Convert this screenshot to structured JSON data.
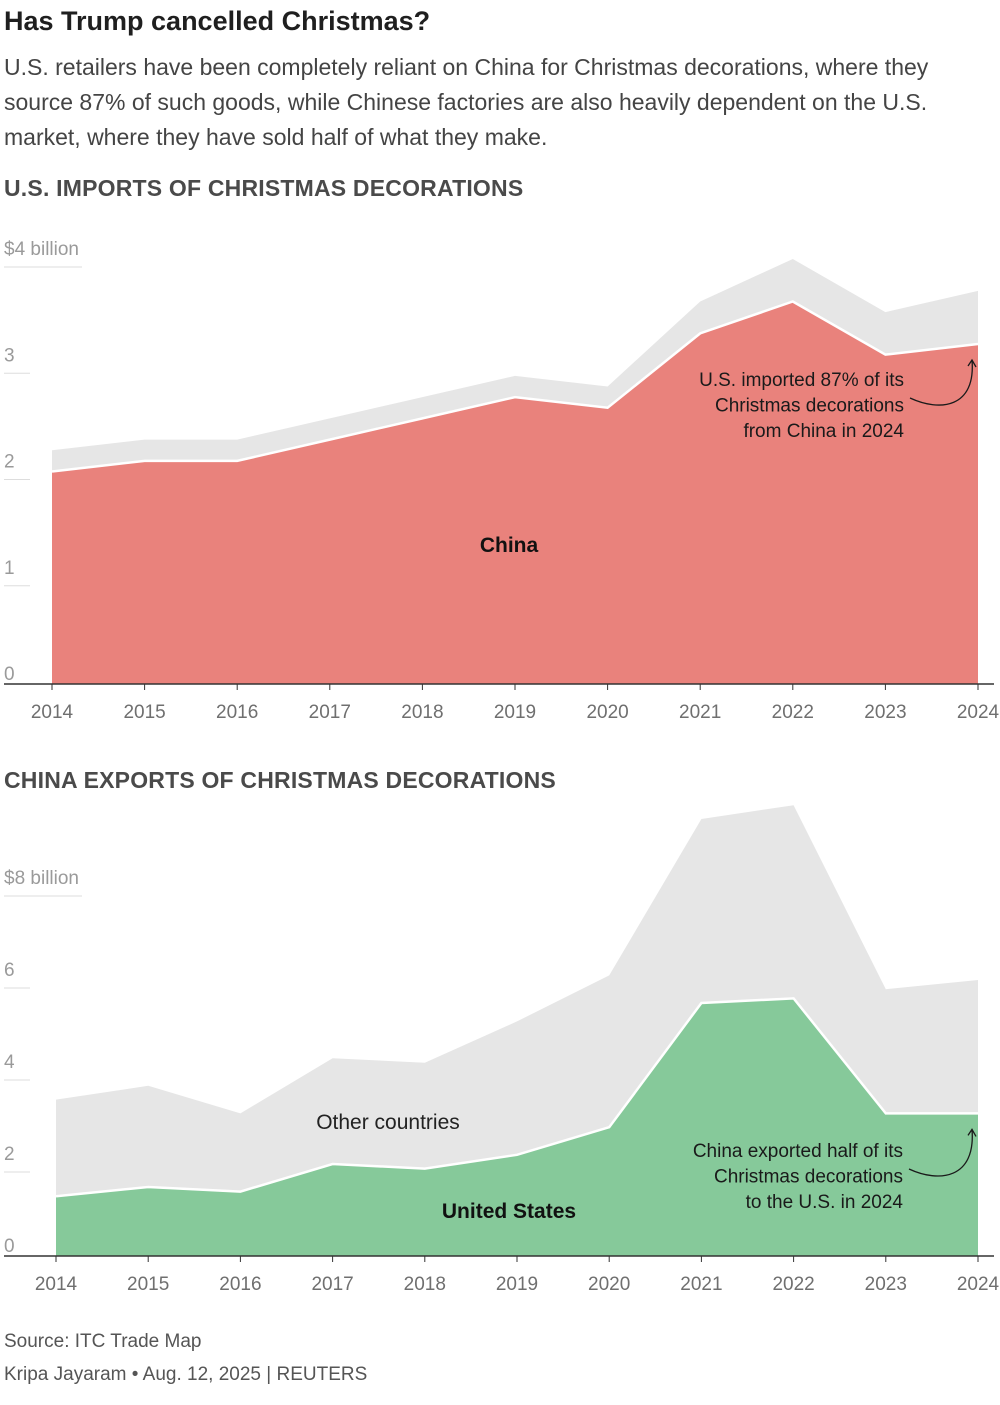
{
  "header": {
    "title": "Has Trump cancelled Christmas?",
    "subtitle": "U.S. retailers have been completely reliant on China for Christmas decorations, where they source 87% of such goods, while Chinese factories are also heavily dependent on the U.S. market, where they have sold half of what they make."
  },
  "colors": {
    "china_area": "#e9827c",
    "total_area": "#e6e6e6",
    "us_area": "#86c99a",
    "axis": "#333333"
  },
  "chart_data": [
    {
      "type": "area",
      "title": "U.S. IMPORTS OF CHRISTMAS DECORATIONS",
      "x": [
        2014,
        2015,
        2016,
        2017,
        2018,
        2019,
        2020,
        2021,
        2022,
        2023,
        2024
      ],
      "ylim": [
        0,
        4
      ],
      "yticks": [
        "0",
        "1",
        "2",
        "3",
        "$4 billion"
      ],
      "series": [
        {
          "name": "China",
          "values": [
            2.0,
            2.1,
            2.1,
            2.3,
            2.5,
            2.7,
            2.6,
            3.3,
            3.6,
            3.1,
            3.2
          ]
        },
        {
          "name": "",
          "role": "total",
          "values": [
            2.2,
            2.3,
            2.3,
            2.5,
            2.7,
            2.9,
            2.8,
            3.6,
            4.0,
            3.5,
            3.7
          ]
        }
      ],
      "annotation": [
        "U.S. imported 87% of its",
        "Christmas decorations",
        "from China in 2024"
      ]
    },
    {
      "type": "area",
      "title": "CHINA EXPORTS OF CHRISTMAS DECORATIONS",
      "x": [
        2014,
        2015,
        2016,
        2017,
        2018,
        2019,
        2020,
        2021,
        2022,
        2023,
        2024
      ],
      "ylim": [
        0,
        8
      ],
      "yticks": [
        "0",
        "2",
        "4",
        "6",
        "$8 billion"
      ],
      "series": [
        {
          "name": "United States",
          "values": [
            1.3,
            1.5,
            1.4,
            2.0,
            1.9,
            2.2,
            2.8,
            5.5,
            5.6,
            3.1,
            3.1
          ]
        },
        {
          "name": "Other countries",
          "role": "total",
          "values": [
            3.4,
            3.7,
            3.1,
            4.3,
            4.2,
            5.1,
            6.1,
            9.5,
            9.8,
            5.8,
            6.0
          ]
        }
      ],
      "annotation": [
        "China exported half of its",
        "Christmas decorations",
        "to the U.S. in 2024"
      ]
    }
  ],
  "footer": {
    "source": "Source: ITC Trade Map",
    "byline": "Kripa Jayaram • Aug. 12, 2025 | REUTERS"
  }
}
